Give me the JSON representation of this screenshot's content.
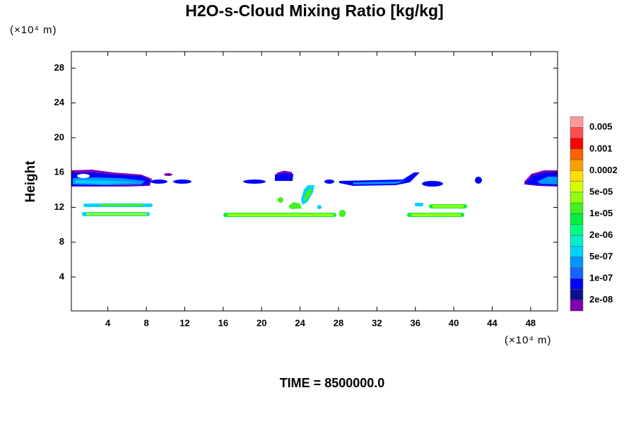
{
  "chart_data": {
    "type": "contour",
    "title": "H2O-s-Cloud Mixing Ratio [kg/kg]",
    "y_label": "Height",
    "x_unit": "(×10⁴ m)",
    "y_unit": "(×10⁴ m)",
    "annotation": "TIME = 8500000.0",
    "xlim": [
      0.2,
      50.8
    ],
    "ylim": [
      0.1,
      29.9
    ],
    "xticks": [
      4,
      8,
      12,
      16,
      20,
      24,
      28,
      32,
      36,
      40,
      44,
      48
    ],
    "yticks": [
      4,
      8,
      12,
      16,
      20,
      24,
      28
    ],
    "colorbar": {
      "levels": [
        0.005,
        0.001,
        0.0002,
        {
          "value": 5e-05,
          "label": "5e-05"
        },
        {
          "value": 1e-05,
          "label": "1e-05"
        },
        {
          "value": 2e-06,
          "label": "2e-06"
        },
        {
          "value": 5e-07,
          "label": "5e-07"
        },
        {
          "value": 1e-07,
          "label": "1e-07"
        },
        {
          "value": 2e-08,
          "label": "2e-08"
        }
      ],
      "colors": [
        "#ff9a9a",
        "#ff5050",
        "#ff0000",
        "#ff6000",
        "#ffa000",
        "#ffe000",
        "#d8ff00",
        "#90ff10",
        "#40f020",
        "#00f040",
        "#00ff80",
        "#00f0c8",
        "#00d2ff",
        "#0096ff",
        "#1464ff",
        "#0000ff",
        "#10108c",
        "#8000b0"
      ]
    }
  }
}
